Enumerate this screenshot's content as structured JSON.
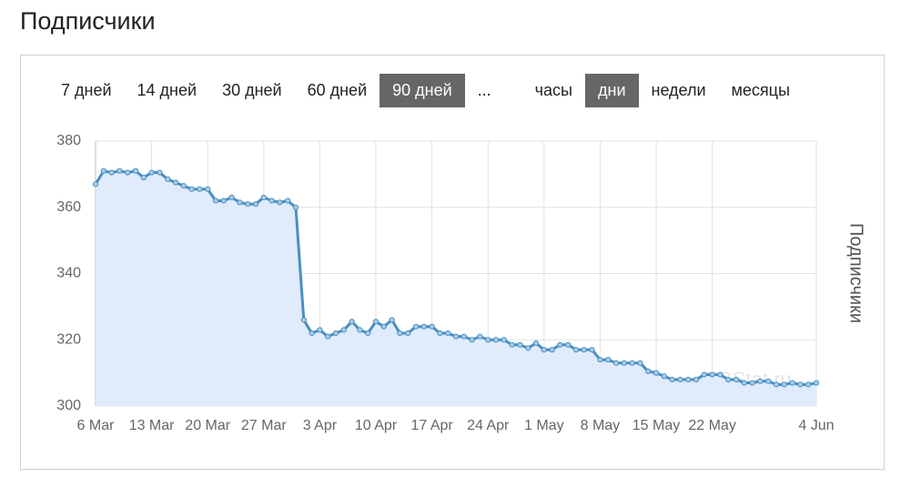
{
  "header": {
    "title": "Подписчики"
  },
  "controls": {
    "buttons": [
      {
        "label": "7 дней",
        "active": false
      },
      {
        "label": "14 дней",
        "active": false
      },
      {
        "label": "30 дней",
        "active": false
      },
      {
        "label": "60 дней",
        "active": false
      },
      {
        "label": "90 дней",
        "active": true
      },
      {
        "label": "...",
        "active": false
      },
      {
        "label": "часы",
        "active": false
      },
      {
        "label": "дни",
        "active": true
      },
      {
        "label": "недели",
        "active": false
      },
      {
        "label": "месяцы",
        "active": false
      }
    ]
  },
  "chart_data": {
    "type": "area",
    "y_label": "Подписчики",
    "watermark": "TGStat.ru",
    "x": [
      0,
      1,
      2,
      3,
      4,
      5,
      6,
      7,
      8,
      9,
      10,
      11,
      12,
      13,
      14,
      15,
      16,
      17,
      18,
      19,
      20,
      21,
      22,
      23,
      24,
      25,
      26,
      27,
      28,
      29,
      30,
      31,
      32,
      33,
      34,
      35,
      36,
      37,
      38,
      39,
      40,
      41,
      42,
      43,
      44,
      45,
      46,
      47,
      48,
      49,
      50,
      51,
      52,
      53,
      54,
      55,
      56,
      57,
      58,
      59,
      60,
      61,
      62,
      63,
      64,
      65,
      66,
      67,
      68,
      69,
      70,
      71,
      72,
      73,
      74,
      75,
      76,
      77,
      78,
      79,
      80,
      81,
      82,
      83,
      84,
      85,
      86,
      87,
      88,
      89,
      90
    ],
    "series": [
      {
        "name": "Подписчики",
        "color": "#4a8fc0",
        "values": [
          367,
          371,
          370.5,
          371,
          370.5,
          371,
          369,
          370.5,
          370.5,
          368.5,
          367.5,
          366.5,
          365.5,
          365.5,
          365.5,
          362,
          362,
          363,
          361.5,
          361,
          361,
          363,
          362,
          361.5,
          362,
          360,
          326,
          322,
          323,
          321,
          322,
          323,
          325.5,
          323,
          322,
          325.5,
          324,
          326,
          322,
          322,
          324,
          324,
          324,
          322,
          322,
          321,
          321,
          320,
          321,
          320,
          320,
          320,
          318.5,
          318.5,
          317.5,
          319,
          317,
          317,
          318.5,
          318.5,
          317,
          317,
          317,
          314,
          314,
          313,
          313,
          313,
          313,
          310.5,
          310,
          309,
          308,
          308,
          308,
          308,
          309.5,
          309.5,
          309.5,
          308,
          308,
          307,
          307,
          307.5,
          307.5,
          306.5,
          306.5,
          307,
          306.5,
          306.5,
          307
        ]
      }
    ],
    "xlim": [
      0,
      90
    ],
    "xticks": [
      {
        "value": 0,
        "label": "6 Mar"
      },
      {
        "value": 7,
        "label": "13 Mar"
      },
      {
        "value": 14,
        "label": "20 Mar"
      },
      {
        "value": 21,
        "label": "27 Mar"
      },
      {
        "value": 28,
        "label": "3 Apr"
      },
      {
        "value": 35,
        "label": "10 Apr"
      },
      {
        "value": 42,
        "label": "17 Apr"
      },
      {
        "value": 49,
        "label": "24 Apr"
      },
      {
        "value": 56,
        "label": "1 May"
      },
      {
        "value": 63,
        "label": "8 May"
      },
      {
        "value": 70,
        "label": "15 May"
      },
      {
        "value": 77,
        "label": "22 May"
      },
      {
        "value": 90,
        "label": "4 Jun"
      }
    ],
    "ylim": [
      300,
      380
    ],
    "yticks": [
      300,
      320,
      340,
      360,
      380
    ],
    "grid": true,
    "fill": "#e0ebfb"
  }
}
